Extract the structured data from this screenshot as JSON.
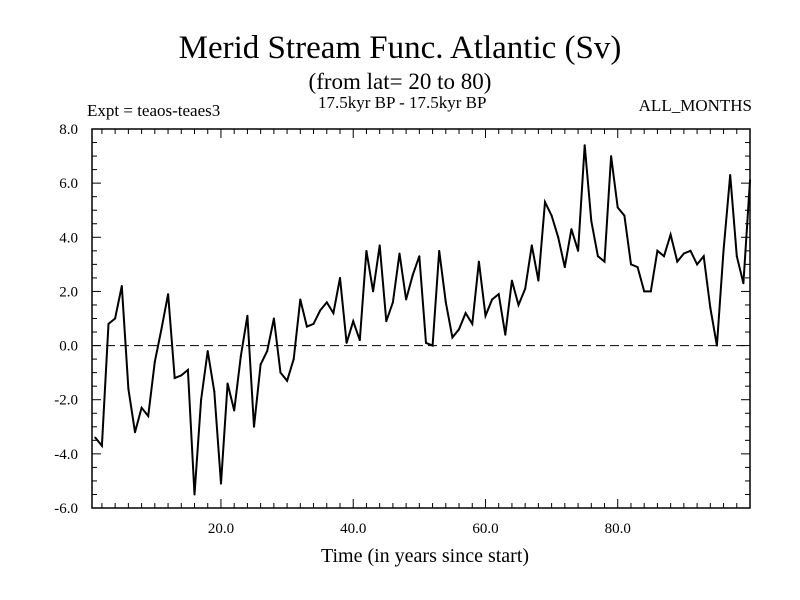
{
  "header": {
    "title": "Merid Stream Func. Atlantic (Sv)",
    "subtitle": "(from lat= 20 to 80)",
    "expt_label": "Expt = teaos-teaes3",
    "period_label": "17.5kyr BP - 17.5kyr BP",
    "months_label": "ALL_MONTHS"
  },
  "chart_data": {
    "type": "line",
    "title": "Merid Stream Func. Atlantic (Sv)",
    "subtitle": "(from lat= 20 to 80)",
    "xlabel": "Time (in years since start)",
    "ylabel": "",
    "xlim": [
      0.5,
      100
    ],
    "ylim": [
      -6,
      8
    ],
    "x_ticks": [
      20,
      40,
      60,
      80
    ],
    "x_tick_labels": [
      "20.0",
      "40.0",
      "60.0",
      "80.0"
    ],
    "y_ticks": [
      8,
      6,
      4,
      2,
      0,
      -2,
      -4,
      -6
    ],
    "y_tick_labels": [
      "8.0",
      "6.0",
      "4.0",
      "2.0",
      "0.0",
      "-2.0",
      "-4.0",
      "-6.0"
    ],
    "reference_line": {
      "y": 0,
      "style": "dashed"
    },
    "series": [
      {
        "name": "teaos-teaes3",
        "x": [
          1,
          2,
          3,
          4,
          5,
          6,
          7,
          8,
          9,
          10,
          11,
          12,
          13,
          14,
          15,
          16,
          17,
          18,
          19,
          20,
          21,
          22,
          23,
          24,
          25,
          26,
          27,
          28,
          29,
          30,
          31,
          32,
          33,
          34,
          35,
          36,
          37,
          38,
          39,
          40,
          41,
          42,
          43,
          44,
          45,
          46,
          47,
          48,
          49,
          50,
          51,
          52,
          53,
          54,
          55,
          56,
          57,
          58,
          59,
          60,
          61,
          62,
          63,
          64,
          65,
          66,
          67,
          68,
          69,
          70,
          71,
          72,
          73,
          74,
          75,
          76,
          77,
          78,
          79,
          80,
          81,
          82,
          83,
          84,
          85,
          86,
          87,
          88,
          89,
          90,
          91,
          92,
          93,
          94,
          95,
          96,
          97,
          98,
          99,
          100
        ],
        "values": [
          -3.4,
          -3.7,
          0.8,
          1.0,
          2.2,
          -1.6,
          -3.2,
          -2.3,
          -2.6,
          -0.6,
          0.6,
          1.9,
          -1.2,
          -1.1,
          -0.9,
          -5.5,
          -2.0,
          -0.2,
          -1.7,
          -5.1,
          -1.4,
          -2.4,
          -0.4,
          1.1,
          -3.0,
          -0.7,
          -0.2,
          1.0,
          -1.0,
          -1.3,
          -0.5,
          1.7,
          0.7,
          0.8,
          1.3,
          1.6,
          1.2,
          2.5,
          0.1,
          0.9,
          0.2,
          3.5,
          2.0,
          3.7,
          0.9,
          1.6,
          3.4,
          1.7,
          2.6,
          3.3,
          0.1,
          0.0,
          3.5,
          1.6,
          0.3,
          0.6,
          1.2,
          0.8,
          3.1,
          1.1,
          1.7,
          1.9,
          0.4,
          2.4,
          1.5,
          2.1,
          3.7,
          2.4,
          5.3,
          4.8,
          4.0,
          2.9,
          4.3,
          3.5,
          7.4,
          4.6,
          3.3,
          3.1,
          7.0,
          5.1,
          4.8,
          3.0,
          2.9,
          2.0,
          2.0,
          3.5,
          3.3,
          4.1,
          3.1,
          3.4,
          3.5,
          3.0,
          3.3,
          1.4,
          0.0,
          3.5,
          6.3,
          3.3,
          2.3,
          6.1
        ]
      }
    ]
  }
}
